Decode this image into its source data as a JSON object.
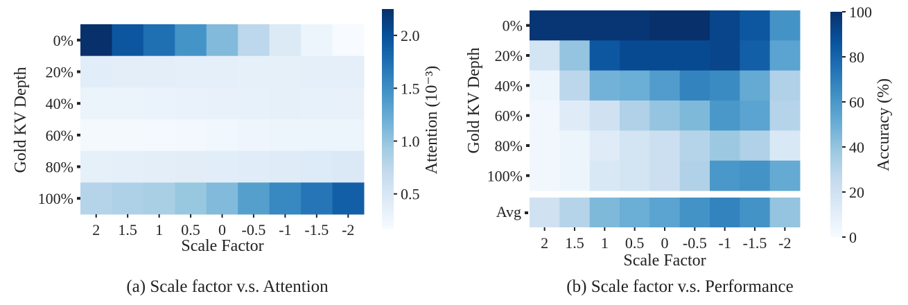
{
  "colors": {
    "scale_low": "#f7fbff",
    "scale_stops": [
      "#f7fbff",
      "#deebf7",
      "#c6dbef",
      "#9ecae1",
      "#6baed6",
      "#4292c6",
      "#2171b5",
      "#08519c",
      "#08306b"
    ]
  },
  "chart_data": [
    {
      "type": "heatmap",
      "caption": "(a) Scale factor v.s. Attention",
      "xlabel": "Scale Factor",
      "ylabel": "Gold KV Depth",
      "x_categories": [
        "2",
        "1.5",
        "1",
        "0.5",
        "0",
        "-0.5",
        "-1",
        "-1.5",
        "-2"
      ],
      "y_categories": [
        "0%",
        "20%",
        "40%",
        "60%",
        "80%",
        "100%"
      ],
      "values": [
        [
          2.25,
          1.95,
          1.75,
          1.45,
          1.1,
          0.75,
          0.45,
          0.28,
          0.17
        ],
        [
          0.4,
          0.38,
          0.38,
          0.37,
          0.36,
          0.35,
          0.35,
          0.36,
          0.37
        ],
        [
          0.3,
          0.3,
          0.31,
          0.32,
          0.33,
          0.34,
          0.35,
          0.34,
          0.33
        ],
        [
          0.2,
          0.2,
          0.21,
          0.22,
          0.24,
          0.26,
          0.27,
          0.28,
          0.28
        ],
        [
          0.35,
          0.36,
          0.38,
          0.39,
          0.4,
          0.41,
          0.42,
          0.44,
          0.46
        ],
        [
          0.8,
          0.84,
          0.88,
          0.98,
          1.1,
          1.35,
          1.55,
          1.7,
          1.88
        ]
      ],
      "colorbar": {
        "label": "Attention (10⁻³)",
        "range": [
          0.17,
          2.25
        ],
        "ticks": [
          0.5,
          1.0,
          1.5,
          2.0
        ],
        "tick_labels": [
          "0.5",
          "1.0",
          "1.5",
          "2.0"
        ]
      }
    },
    {
      "type": "heatmap",
      "caption": "(b) Scale factor v.s. Performance",
      "xlabel": "Scale Factor",
      "ylabel": "Gold KV Depth",
      "x_categories": [
        "2",
        "1.5",
        "1",
        "0.5",
        "0",
        "-0.5",
        "-1",
        "-1.5",
        "-2"
      ],
      "y_categories": [
        "0%",
        "20%",
        "40%",
        "60%",
        "80%",
        "100%"
      ],
      "values": [
        [
          98,
          98,
          98,
          98,
          100,
          100,
          92,
          85,
          62
        ],
        [
          18,
          40,
          85,
          90,
          90,
          90,
          92,
          82,
          55
        ],
        [
          5,
          28,
          48,
          50,
          58,
          68,
          65,
          52,
          32
        ],
        [
          3,
          12,
          20,
          32,
          40,
          45,
          60,
          55,
          30
        ],
        [
          3,
          5,
          12,
          18,
          22,
          30,
          38,
          32,
          15
        ],
        [
          3,
          5,
          15,
          18,
          22,
          32,
          60,
          62,
          52
        ]
      ],
      "avg_label": "Avg",
      "avg_values": [
        20,
        30,
        45,
        50,
        55,
        62,
        68,
        62,
        40
      ],
      "colorbar": {
        "label": "Accuracy (%)",
        "range": [
          0,
          100
        ],
        "ticks": [
          0,
          20,
          40,
          60,
          80,
          100
        ],
        "tick_labels": [
          "0",
          "20",
          "40",
          "60",
          "80",
          "100"
        ]
      }
    }
  ]
}
